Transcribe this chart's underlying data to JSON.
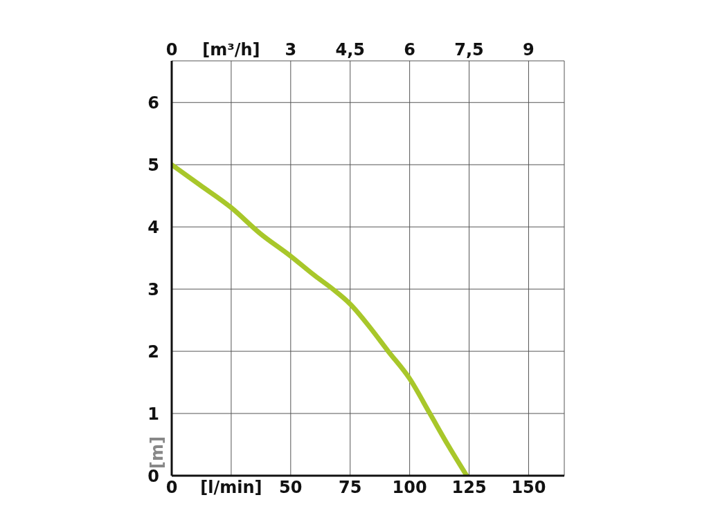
{
  "chart_data": {
    "type": "line",
    "xlabel": null,
    "ylabel": "[m]",
    "x": [
      0,
      12,
      25,
      37,
      50,
      60,
      67.7,
      75,
      83,
      91,
      100,
      108.5,
      116,
      124
    ],
    "series": [
      {
        "color": "#a8c72a",
        "values": [
          5.0,
          4.67,
          4.31,
          3.9,
          3.53,
          3.22,
          3.0,
          2.76,
          2.4,
          2.0,
          1.56,
          1.0,
          0.5,
          0
        ]
      }
    ],
    "xlim": [
      0,
      165
    ],
    "xticks": [
      0,
      {
        "value": 25,
        "label": "[l/min]"
      },
      50,
      75,
      100,
      125,
      150
    ],
    "x2lim": [
      0,
      9.9
    ],
    "x2ticks": [
      0,
      {
        "value": 1.5,
        "label": "[m³/h]"
      },
      3,
      {
        "value": 4.5,
        "label": "4,5"
      },
      6,
      {
        "value": 7.5,
        "label": "7,5"
      },
      9
    ],
    "ylim": [
      0,
      6.67
    ],
    "yticks": [
      0,
      1,
      2,
      3,
      4,
      5,
      6
    ],
    "grid": true
  }
}
